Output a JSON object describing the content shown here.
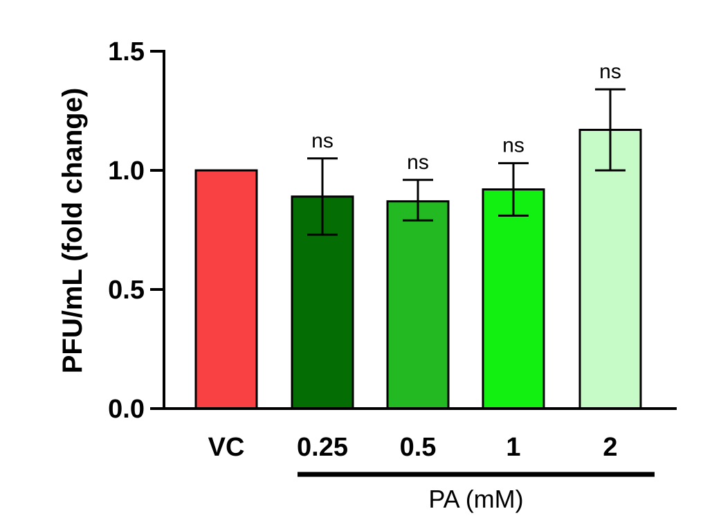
{
  "chart_data": {
    "type": "bar",
    "categories": [
      "VC",
      "0.25",
      "0.5",
      "1",
      "2"
    ],
    "values": [
      1.0,
      0.89,
      0.87,
      0.92,
      1.17
    ],
    "error_high": [
      null,
      1.05,
      0.96,
      1.03,
      1.34
    ],
    "error_low": [
      null,
      0.73,
      0.79,
      0.81,
      1.0
    ],
    "significance": [
      "",
      "ns",
      "ns",
      "ns",
      "ns"
    ],
    "colors": [
      "#f94144",
      "#046e04",
      "#22b922",
      "#11f011",
      "#c6fac6"
    ],
    "ylabel": "PFU/mL (fold change)",
    "ylim": [
      0,
      1.5
    ],
    "yticks": [
      "0.0",
      "0.5",
      "1.0",
      "1.5"
    ],
    "group_label": "PA (mM)",
    "grid": false
  }
}
